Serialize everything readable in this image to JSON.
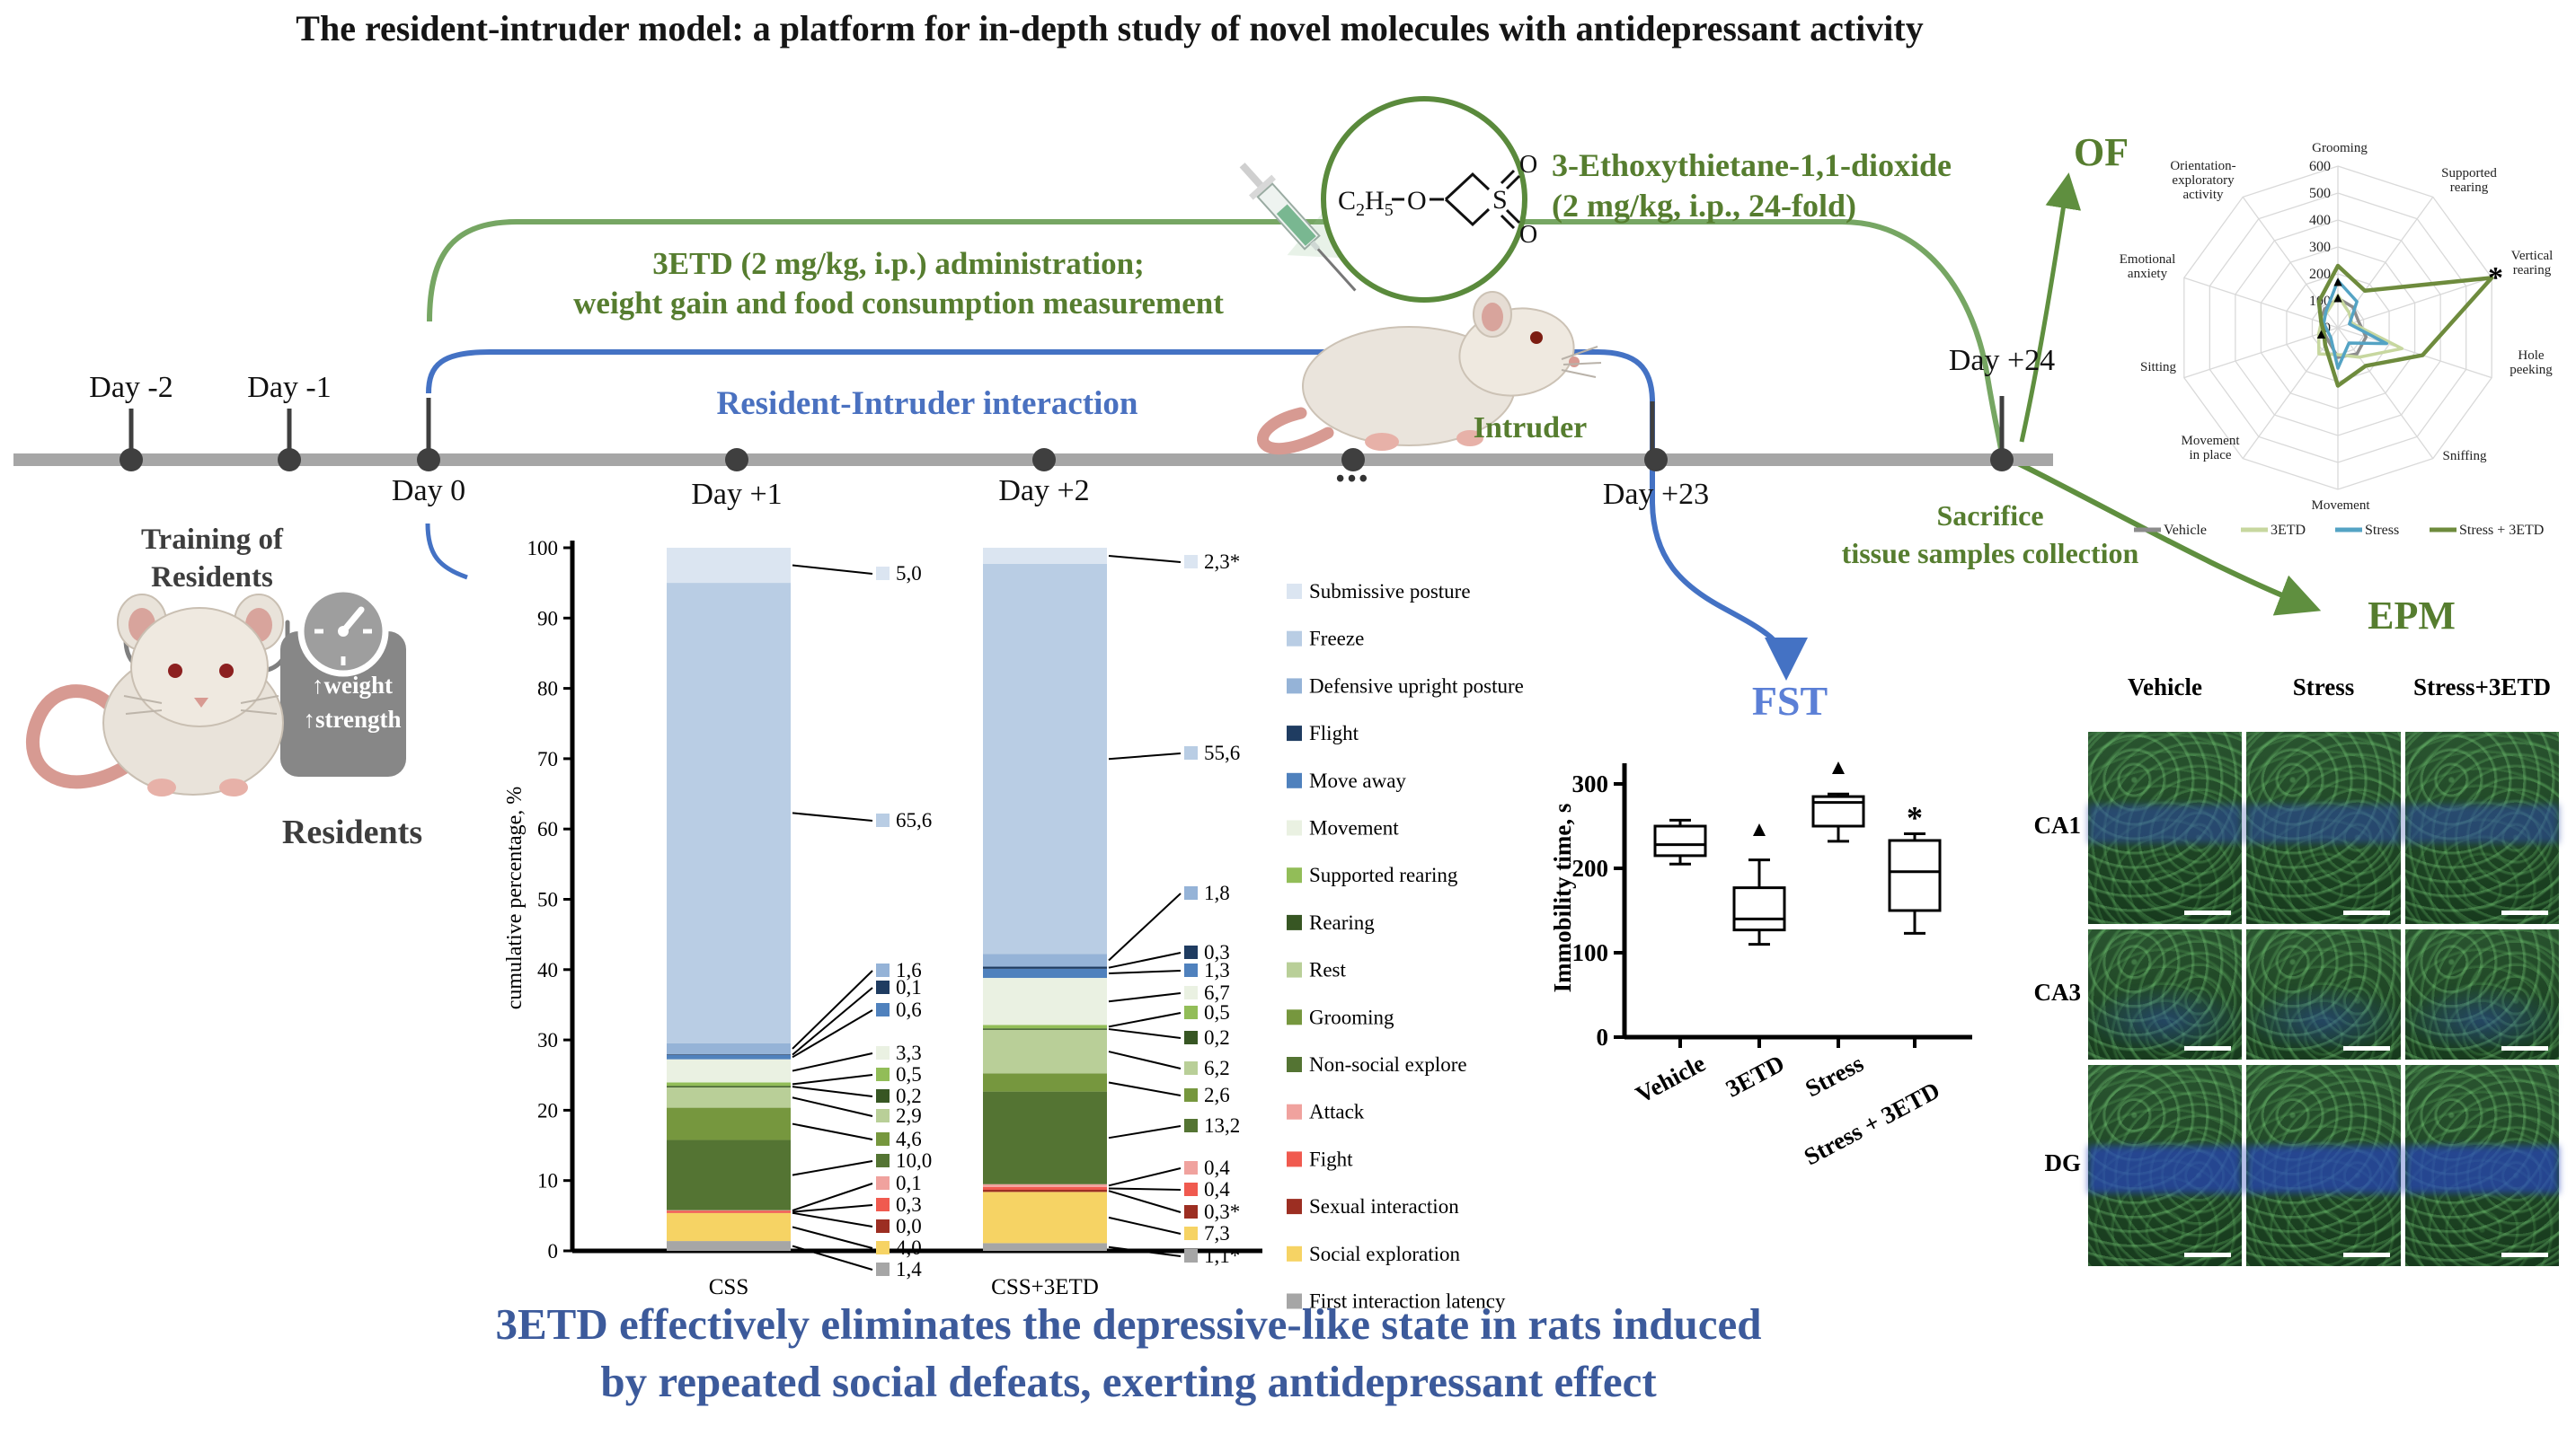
{
  "title": "The resident-intruder model: a platform for in-depth study of novel molecules with antidepressant activity",
  "caption": {
    "line1": "3ETD effectively eliminates the depressive-like state in rats induced",
    "line2": "by repeated social defeats, exerting antidepressant effect"
  },
  "timeline": {
    "days": [
      {
        "label": "Day -2"
      },
      {
        "label": "Day -1"
      },
      {
        "label": "Day 0"
      },
      {
        "label": "Day +1"
      },
      {
        "label": "Day +2"
      },
      {
        "label": "Day +23"
      },
      {
        "label": "Day +24"
      }
    ],
    "ellipsis": "•••",
    "training": {
      "line1": "Training of",
      "line2": "Residents"
    },
    "residents_label": "Residents",
    "intruder_label": "Intruder",
    "badge": {
      "line1": "↑weight",
      "line2": "↑strength"
    }
  },
  "green": {
    "admin_line1": "3ETD (2 mg/kg, i.p.) administration;",
    "admin_line2": "weight gain and food consumption measurement",
    "compound_line1": "3-Ethoxythietane-1,1-dioxide",
    "compound_line2": "(2 mg/kg, i.p., 24-fold)",
    "of_label": "OF",
    "epm_label": "EPM",
    "sacrifice_line1": "Sacrifice",
    "sacrifice_line2": "tissue samples collection"
  },
  "blue": {
    "interaction_label": "Resident-Intruder interaction",
    "fst_label": "FST"
  },
  "chem": {
    "ethyl_c": "C",
    "ethyl_sub2": "2",
    "ethyl_h": "H",
    "ethyl_sub5": "5",
    "ether_o": "O",
    "sulfur": "S",
    "oxy_top": "O",
    "oxy_bottom": "O"
  },
  "chart_data": [
    {
      "type": "bar",
      "stacked": true,
      "title": "",
      "xlabel": "",
      "ylabel": "cumulative percentage, %",
      "ylim": [
        0,
        100
      ],
      "ytick_step": 10,
      "categories": [
        "CSS",
        "CSS+3ETD"
      ],
      "series": [
        {
          "name": "Submissive posture",
          "color": "#dbe5f1",
          "values": [
            5.0,
            2.3
          ],
          "labels": [
            "5,0",
            "2,3*"
          ]
        },
        {
          "name": "Freeze",
          "color": "#b9cde4",
          "values": [
            65.6,
            55.6
          ],
          "labels": [
            "65,6",
            "55,6"
          ]
        },
        {
          "name": "Defensive upright posture",
          "color": "#95b3d7",
          "values": [
            1.6,
            1.8
          ],
          "labels": [
            "1,6",
            "1,8"
          ]
        },
        {
          "name": "Flight",
          "color": "#1f3c61",
          "values": [
            0.1,
            0.3
          ],
          "labels": [
            "0,1",
            "0,3"
          ]
        },
        {
          "name": "Move away",
          "color": "#4f81bd",
          "values": [
            0.6,
            1.3
          ],
          "labels": [
            "0,6",
            "1,3"
          ]
        },
        {
          "name": "Movement",
          "color": "#eaf1e2",
          "values": [
            3.3,
            6.7
          ],
          "labels": [
            "3,3",
            "6,7"
          ]
        },
        {
          "name": "Supported rearing",
          "color": "#92bd58",
          "values": [
            0.5,
            0.5
          ],
          "labels": [
            "0,5",
            "0,5"
          ]
        },
        {
          "name": "Rearing",
          "color": "#375623",
          "values": [
            0.2,
            0.2
          ],
          "labels": [
            "0,2",
            "0,2"
          ]
        },
        {
          "name": "Rest",
          "color": "#b9cf98",
          "values": [
            2.9,
            6.2
          ],
          "labels": [
            "2,9",
            "6,2"
          ]
        },
        {
          "name": "Grooming",
          "color": "#76973e",
          "values": [
            4.6,
            2.6
          ],
          "labels": [
            "4,6",
            "2,6"
          ]
        },
        {
          "name": "Non-social explore",
          "color": "#547433",
          "values": [
            10.0,
            13.2
          ],
          "labels": [
            "10,0",
            "13,2"
          ]
        },
        {
          "name": "Attack",
          "color": "#f0a29e",
          "values": [
            0.1,
            0.4
          ],
          "labels": [
            "0,1",
            "0,4"
          ]
        },
        {
          "name": "Fight",
          "color": "#f05a4f",
          "values": [
            0.3,
            0.4
          ],
          "labels": [
            "0,3",
            "0,4"
          ]
        },
        {
          "name": "Sexual interaction",
          "color": "#9c2e22",
          "values": [
            0.0,
            0.3
          ],
          "labels": [
            "0,0",
            "0,3*"
          ]
        },
        {
          "name": "Social exploration",
          "color": "#f6d364",
          "values": [
            4.0,
            7.3
          ],
          "labels": [
            "4,0",
            "7,3"
          ]
        },
        {
          "name": "First interaction latency",
          "color": "#a6a6a6",
          "values": [
            1.4,
            1.1
          ],
          "labels": [
            "1,4",
            "1,1*"
          ]
        }
      ]
    },
    {
      "type": "box",
      "title": "FST",
      "ylabel": "Immobility time, s",
      "ylim": [
        0,
        300
      ],
      "yticks": [
        0,
        100,
        200,
        300
      ],
      "categories": [
        "Vehicle",
        "3ETD",
        "Stress",
        "Stress + 3ETD"
      ],
      "boxes": [
        {
          "whisker_low": 205,
          "q1": 215,
          "median": 228,
          "q3": 250,
          "whisker_high": 257,
          "annotation": "",
          "annotation_y": 0
        },
        {
          "whisker_low": 110,
          "q1": 127,
          "median": 140,
          "q3": 177,
          "whisker_high": 210,
          "annotation": "▲",
          "annotation_y": 247
        },
        {
          "whisker_low": 232,
          "q1": 250,
          "median": 278,
          "q3": 285,
          "whisker_high": 288,
          "annotation": "▲",
          "annotation_y": 320
        },
        {
          "whisker_low": 123,
          "q1": 150,
          "median": 196,
          "q3": 233,
          "whisker_high": 241,
          "annotation": "*",
          "annotation_y": 262
        }
      ]
    },
    {
      "type": "radar",
      "rmax": 600,
      "rtick_step": 100,
      "rtick_labels": [
        "600",
        "500",
        "400",
        "300",
        "200",
        "100",
        "0"
      ],
      "axes": [
        {
          "name": "Grooming",
          "lines": [
            "Grooming"
          ]
        },
        {
          "name": "Supported rearing",
          "lines": [
            "Supported",
            "rearing"
          ]
        },
        {
          "name": "Vertical rearing",
          "lines": [
            "Vertical",
            "rearing"
          ]
        },
        {
          "name": "Hole peeking",
          "lines": [
            "Hole",
            "peeking"
          ]
        },
        {
          "name": "Sniffing",
          "lines": [
            "Sniffing"
          ]
        },
        {
          "name": "Movement",
          "lines": [
            "Movement"
          ]
        },
        {
          "name": "Movement in place",
          "lines": [
            "Movement",
            "in place"
          ]
        },
        {
          "name": "Sitting",
          "lines": [
            "Sitting"
          ]
        },
        {
          "name": "Emotional anxiety",
          "lines": [
            "Emotional",
            "anxiety"
          ]
        },
        {
          "name": "Orientation-exploratory activity",
          "lines": [
            "Orientation-",
            "exploratory",
            "activity"
          ]
        }
      ],
      "series": [
        {
          "name": "Vehicle",
          "color": "#8c8c8c",
          "values": [
            110,
            95,
            80,
            110,
            120,
            110,
            60,
            55,
            65,
            85
          ]
        },
        {
          "name": "3ETD",
          "color": "#c7d79f",
          "values": [
            120,
            70,
            55,
            250,
            135,
            100,
            120,
            75,
            65,
            70
          ]
        },
        {
          "name": "Stress",
          "color": "#54a3c4",
          "values": [
            175,
            120,
            45,
            190,
            70,
            150,
            45,
            40,
            55,
            75
          ]
        },
        {
          "name": "Stress + 3ETD",
          "color": "#6e8b3d",
          "values": [
            230,
            170,
            600,
            330,
            175,
            215,
            80,
            55,
            65,
            120
          ]
        }
      ],
      "annotations": [
        {
          "symbol": "*",
          "axis": "Vertical rearing",
          "r": 615
        },
        {
          "symbol": "▲",
          "axis": "Grooming",
          "r": 175
        },
        {
          "symbol": "▲",
          "axis": "Grooming",
          "r": 115
        },
        {
          "symbol": "▲",
          "axis": "Sitting",
          "r": 65
        }
      ]
    }
  ],
  "microscopy": {
    "columns": [
      "Vehicle",
      "Stress",
      "Stress+3ETD"
    ],
    "rows": [
      "CA1",
      "CA3",
      "DG"
    ]
  }
}
